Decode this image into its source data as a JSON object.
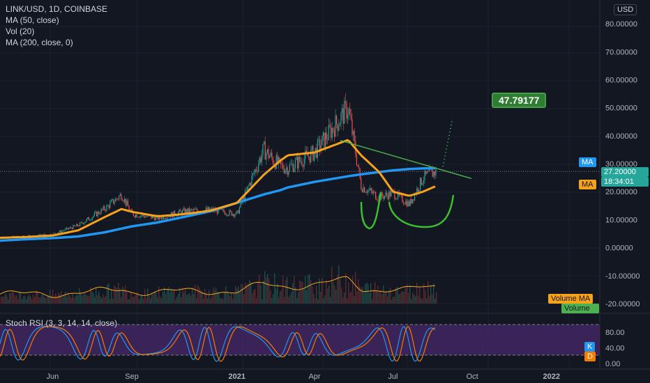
{
  "header": {
    "symbol": "LINK/USD, 1D, COINBASE",
    "indicators": [
      "MA (50, close)",
      "Vol (20)",
      "MA (200, close, 0)"
    ],
    "currency": "USD"
  },
  "stoch_label": "Stoch RSI (3, 3, 14, 14, close)",
  "tags": {
    "ma_blue": "MA",
    "price": "27.20000",
    "countdown": "18:34:01",
    "ma_orange": "MA",
    "volume_ma": "Volume MA",
    "volume": "Volume",
    "target": "47.79177",
    "k": "K",
    "d": "D"
  },
  "colors": {
    "background": "#131722",
    "ma50": "#f7a21b",
    "ma200": "#2196f3",
    "trendline": "#4caf50",
    "annotation": "#4caf50",
    "up": "#26a69a",
    "down": "#ef5350",
    "rsi_band": "#4a2a6e"
  },
  "chart_data": {
    "type": "line",
    "title": "LINK/USD, 1D, COINBASE",
    "x_ticks": [
      "Jun",
      "Sep",
      "2021",
      "Apr",
      "Jul",
      "Oct",
      "2022"
    ],
    "price_axis": {
      "ticks": [
        "80.00000",
        "70.00000",
        "60.00000",
        "50.00000",
        "40.00000",
        "30.00000",
        "20.00000",
        "10.00000",
        "0.00000",
        "-10.00000",
        "-20.00000"
      ],
      "ylim": [
        -22,
        86
      ]
    },
    "rsi_axis": {
      "ticks": [
        "80.00",
        "40.00",
        "0.00"
      ],
      "ylim": [
        0,
        100
      ]
    },
    "x_dates": [
      "2020-04-01",
      "2020-05-01",
      "2020-06-01",
      "2020-07-01",
      "2020-08-01",
      "2020-08-20",
      "2020-09-01",
      "2020-10-01",
      "2020-11-01",
      "2020-12-01",
      "2021-01-01",
      "2021-02-01",
      "2021-02-20",
      "2021-03-01",
      "2021-04-01",
      "2021-05-10",
      "2021-05-25",
      "2021-06-15",
      "2021-07-01",
      "2021-07-20",
      "2021-08-05",
      "2021-08-20"
    ],
    "series": [
      {
        "name": "MA (50, close)",
        "values": [
          3.5,
          3.8,
          4.3,
          6.2,
          11.0,
          13.8,
          12.8,
          11.2,
          12.0,
          13.2,
          16.0,
          26.0,
          31.0,
          33.0,
          34.0,
          38.5,
          33.0,
          27.0,
          20.0,
          18.5,
          20.0,
          22.0
        ]
      },
      {
        "name": "MA (200, close, 0)",
        "values": [
          2.5,
          3.0,
          3.4,
          4.0,
          5.5,
          6.8,
          7.6,
          9.0,
          11.0,
          13.0,
          16.0,
          19.0,
          20.5,
          21.5,
          23.5,
          25.5,
          26.2,
          27.0,
          27.6,
          28.1,
          28.3,
          28.4
        ]
      },
      {
        "name": "Price",
        "values": [
          3.6,
          4.0,
          4.8,
          8.0,
          14.0,
          19.0,
          12.0,
          10.5,
          13.0,
          13.5,
          12.0,
          35.0,
          29.0,
          28.5,
          34.0,
          50.0,
          22.0,
          18.0,
          19.5,
          15.5,
          25.0,
          27.2
        ]
      }
    ],
    "trendline": {
      "from": [
        "2021-05-01",
        38.3
      ],
      "to": [
        "2021-09-30",
        24.7
      ]
    },
    "projection": {
      "from": [
        "2021-08-28",
        29.0
      ],
      "to": [
        "2021-09-08",
        46.0
      ],
      "target": 47.79177
    }
  }
}
